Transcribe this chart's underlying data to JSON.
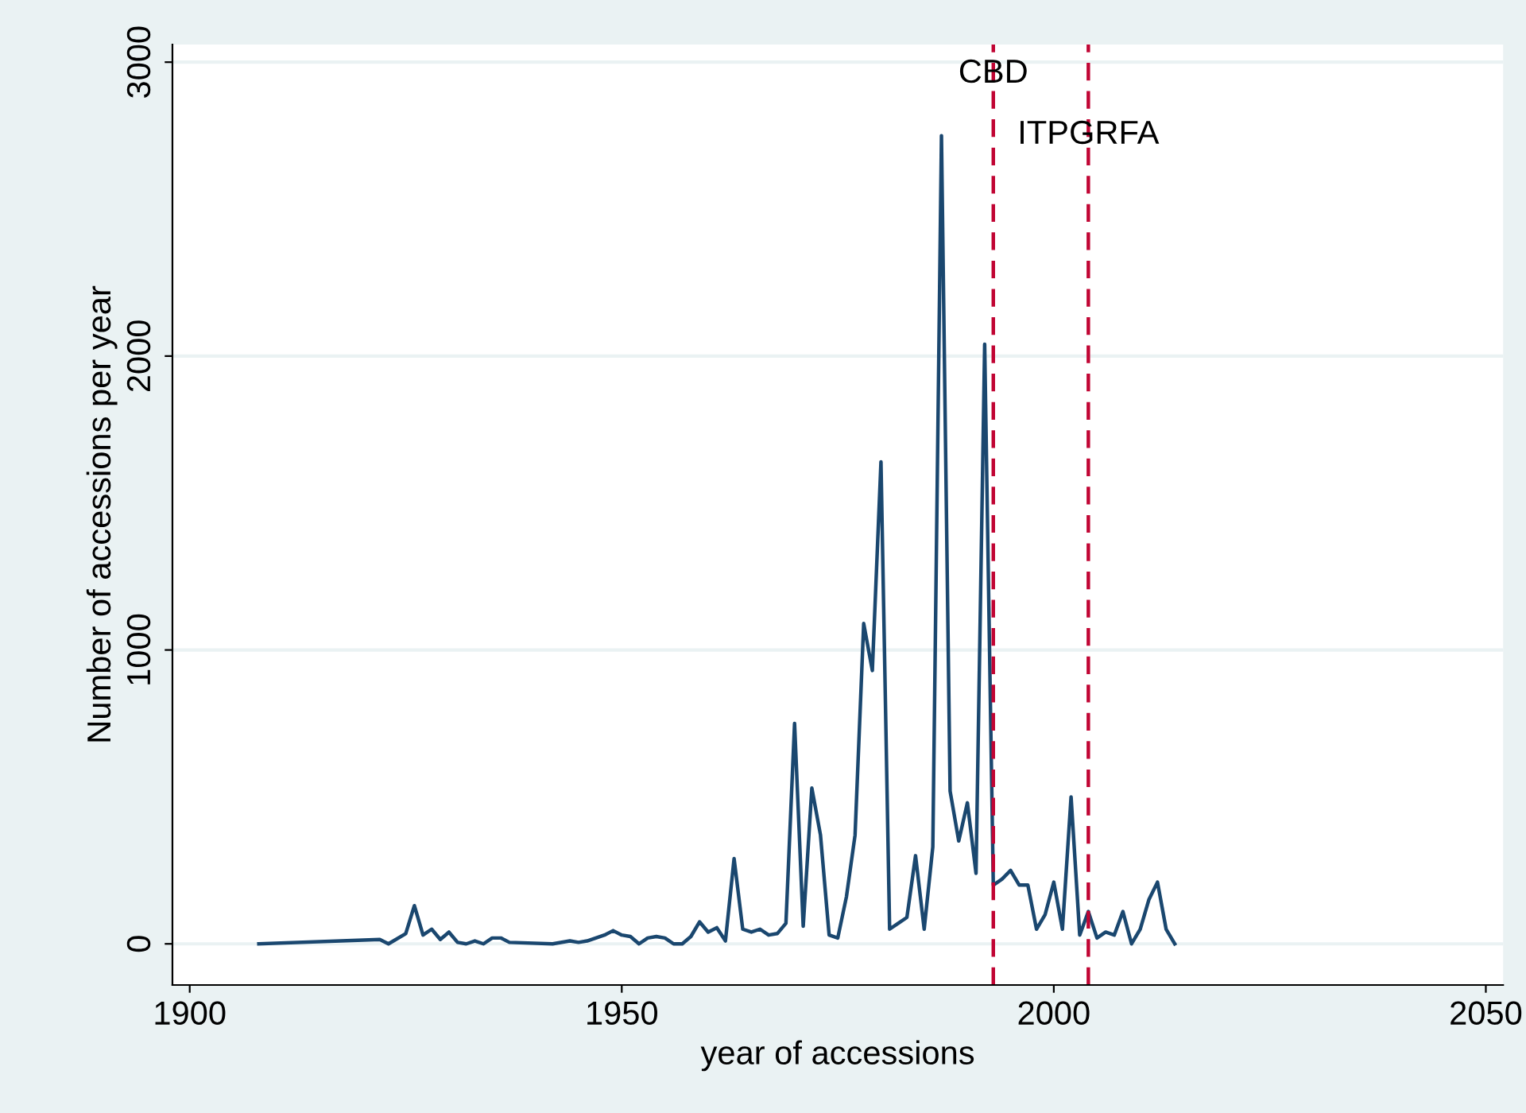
{
  "chart_data": {
    "type": "line",
    "xlabel": "year of accessions",
    "ylabel": "Number of accessions per year",
    "x": [
      1908,
      1922,
      1923,
      1925,
      1926,
      1927,
      1928,
      1929,
      1930,
      1931,
      1932,
      1933,
      1934,
      1935,
      1936,
      1937,
      1942,
      1944,
      1945,
      1946,
      1948,
      1949,
      1950,
      1951,
      1952,
      1953,
      1954,
      1955,
      1956,
      1957,
      1958,
      1959,
      1960,
      1961,
      1962,
      1963,
      1964,
      1965,
      1966,
      1967,
      1968,
      1969,
      1970,
      1971,
      1972,
      1973,
      1974,
      1975,
      1976,
      1977,
      1978,
      1979,
      1980,
      1981,
      1982,
      1983,
      1984,
      1985,
      1986,
      1987,
      1988,
      1989,
      1990,
      1991,
      1992,
      1993,
      1994,
      1995,
      1996,
      1997,
      1998,
      1999,
      2000,
      2001,
      2002,
      2003,
      2004,
      2005,
      2006,
      2007,
      2008,
      2009,
      2010,
      2011,
      2012,
      2013,
      2014
    ],
    "series": [
      {
        "color": "#1a476f",
        "values": [
          0,
          15,
          0,
          35,
          130,
          30,
          50,
          15,
          40,
          5,
          0,
          10,
          0,
          20,
          20,
          5,
          0,
          10,
          5,
          10,
          30,
          45,
          30,
          25,
          0,
          20,
          25,
          20,
          0,
          0,
          25,
          75,
          40,
          55,
          10,
          290,
          50,
          40,
          50,
          30,
          35,
          70,
          750,
          60,
          530,
          370,
          30,
          20,
          160,
          370,
          1090,
          930,
          1640,
          50,
          70,
          90,
          300,
          50,
          330,
          2750,
          520,
          350,
          480,
          240,
          2040,
          200,
          220,
          250,
          200,
          200,
          50,
          100,
          210,
          50,
          500,
          30,
          110,
          20,
          40,
          30,
          110,
          0,
          50,
          150,
          210,
          50,
          0
        ]
      }
    ],
    "xlim": [
      1898,
      2052
    ],
    "ylim": [
      -140,
      3060
    ],
    "xticks": [
      1900,
      1950,
      2000,
      2050
    ],
    "yticks": [
      0,
      1000,
      2000,
      3000
    ],
    "grid": "y",
    "legend": false,
    "marker": "none",
    "line_style": "solid",
    "ref_lines": [
      {
        "axis": "x",
        "value": 1993,
        "label": "CBD",
        "color": "#c10534",
        "line_style": "dashed"
      },
      {
        "axis": "x",
        "value": 2004,
        "label": "ITPGRFA",
        "color": "#c10534",
        "line_style": "dashed"
      }
    ]
  }
}
